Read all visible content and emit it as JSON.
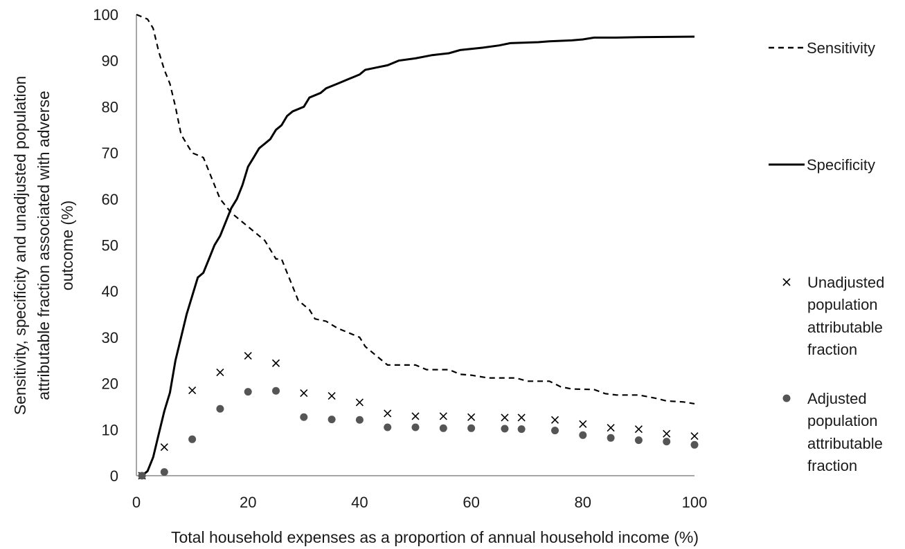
{
  "chart_data": {
    "type": "line",
    "xlabel": "Total household expenses as a proportion of annual household income (%)",
    "ylabel_lines": [
      "Sensitivity, specificity and unadjusted population",
      "attributable fraction associated with adverse",
      "outcome (%)"
    ],
    "xlim": [
      0,
      100
    ],
    "ylim": [
      0,
      100
    ],
    "x_ticks": [
      "0",
      "20",
      "40",
      "60",
      "80",
      "100"
    ],
    "y_ticks": [
      "0",
      "10",
      "20",
      "30",
      "40",
      "50",
      "60",
      "70",
      "80",
      "90",
      "100"
    ],
    "grid": false,
    "legend_position": "right",
    "colors": {
      "lines": "#000000",
      "unadjusted": "#000000",
      "adjusted": "#555555"
    },
    "series": [
      {
        "name": "Sensitivity",
        "style": "dashed-line",
        "points": [
          [
            0,
            100
          ],
          [
            2,
            99
          ],
          [
            3,
            97
          ],
          [
            4,
            92
          ],
          [
            5,
            88
          ],
          [
            6,
            85
          ],
          [
            7,
            80
          ],
          [
            8,
            74
          ],
          [
            9,
            72
          ],
          [
            10,
            70
          ],
          [
            12,
            69
          ],
          [
            13,
            66
          ],
          [
            14,
            63
          ],
          [
            15,
            60
          ],
          [
            17,
            57
          ],
          [
            19,
            55
          ],
          [
            21,
            53
          ],
          [
            23,
            51
          ],
          [
            25,
            47
          ],
          [
            26,
            47
          ],
          [
            27,
            44
          ],
          [
            28,
            41
          ],
          [
            29,
            38
          ],
          [
            31,
            36
          ],
          [
            32,
            34
          ],
          [
            34,
            33.5
          ],
          [
            36,
            32
          ],
          [
            38,
            31
          ],
          [
            40,
            30
          ],
          [
            41,
            28
          ],
          [
            43,
            26
          ],
          [
            45,
            24
          ],
          [
            50,
            24
          ],
          [
            52,
            23
          ],
          [
            56,
            23
          ],
          [
            58,
            22
          ],
          [
            60,
            21.8
          ],
          [
            63,
            21.2
          ],
          [
            68,
            21.2
          ],
          [
            70,
            20.5
          ],
          [
            74,
            20.5
          ],
          [
            76,
            19.3
          ],
          [
            78,
            18.8
          ],
          [
            82,
            18.7
          ],
          [
            84,
            17.8
          ],
          [
            86,
            17.5
          ],
          [
            90,
            17.5
          ],
          [
            93,
            16.8
          ],
          [
            95,
            16.2
          ],
          [
            98,
            16
          ],
          [
            100,
            15.6
          ]
        ]
      },
      {
        "name": "Specificity",
        "style": "solid-line",
        "points": [
          [
            1,
            0
          ],
          [
            2,
            1
          ],
          [
            3,
            4
          ],
          [
            4,
            9
          ],
          [
            5,
            14
          ],
          [
            6,
            18
          ],
          [
            7,
            25
          ],
          [
            8,
            30
          ],
          [
            9,
            35
          ],
          [
            10,
            39
          ],
          [
            11,
            43
          ],
          [
            12,
            44
          ],
          [
            13,
            47
          ],
          [
            14,
            50
          ],
          [
            15,
            52
          ],
          [
            16,
            55
          ],
          [
            17,
            58
          ],
          [
            18,
            60
          ],
          [
            19,
            63
          ],
          [
            20,
            67
          ],
          [
            21,
            69
          ],
          [
            22,
            71
          ],
          [
            23,
            72
          ],
          [
            24,
            73
          ],
          [
            25,
            75
          ],
          [
            26,
            76
          ],
          [
            27,
            78
          ],
          [
            28,
            79
          ],
          [
            30,
            80
          ],
          [
            31,
            82
          ],
          [
            33,
            83
          ],
          [
            34,
            84
          ],
          [
            36,
            85
          ],
          [
            38,
            86
          ],
          [
            40,
            87
          ],
          [
            41,
            88
          ],
          [
            43,
            88.5
          ],
          [
            45,
            89
          ],
          [
            47,
            90
          ],
          [
            50,
            90.5
          ],
          [
            53,
            91.2
          ],
          [
            56,
            91.6
          ],
          [
            58,
            92.3
          ],
          [
            62,
            92.8
          ],
          [
            65,
            93.3
          ],
          [
            67,
            93.8
          ],
          [
            72,
            94
          ],
          [
            74,
            94.2
          ],
          [
            78,
            94.4
          ],
          [
            80,
            94.6
          ],
          [
            82,
            95
          ],
          [
            86,
            95
          ],
          [
            90,
            95.1
          ],
          [
            100,
            95.2
          ]
        ]
      },
      {
        "name": "Unadjusted population attributable fraction",
        "style": "x-marker",
        "points": [
          [
            1,
            0
          ],
          [
            5,
            6.2
          ],
          [
            10,
            18.5
          ],
          [
            15,
            22.4
          ],
          [
            20,
            26
          ],
          [
            25,
            24.4
          ],
          [
            30,
            17.9
          ],
          [
            35,
            17.3
          ],
          [
            40,
            15.9
          ],
          [
            45,
            13.5
          ],
          [
            50,
            12.9
          ],
          [
            55,
            12.9
          ],
          [
            60,
            12.7
          ],
          [
            66,
            12.6
          ],
          [
            69,
            12.6
          ],
          [
            75,
            12.1
          ],
          [
            80,
            11.2
          ],
          [
            85,
            10.4
          ],
          [
            90,
            10.1
          ],
          [
            95,
            9.1
          ],
          [
            100,
            8.6
          ]
        ]
      },
      {
        "name": "Adjusted population attributable fraction",
        "style": "circle-marker",
        "points": [
          [
            1,
            0
          ],
          [
            5,
            0.8
          ],
          [
            10,
            7.9
          ],
          [
            15,
            14.5
          ],
          [
            20,
            18.2
          ],
          [
            25,
            18.4
          ],
          [
            30,
            12.7
          ],
          [
            35,
            12.2
          ],
          [
            40,
            12.1
          ],
          [
            45,
            10.5
          ],
          [
            50,
            10.5
          ],
          [
            55,
            10.3
          ],
          [
            60,
            10.3
          ],
          [
            66,
            10.2
          ],
          [
            69,
            10.1
          ],
          [
            75,
            9.8
          ],
          [
            80,
            8.8
          ],
          [
            85,
            8.2
          ],
          [
            90,
            7.7
          ],
          [
            95,
            7.4
          ],
          [
            100,
            6.7
          ]
        ]
      }
    ],
    "legend": {
      "sensitivity": "Sensitivity",
      "specificity": "Specificity",
      "unadjusted_lines": [
        "Unadjusted",
        "population",
        "attributable",
        "fraction"
      ],
      "adjusted_lines": [
        "Adjusted",
        "population",
        "attributable",
        "fraction"
      ]
    }
  }
}
